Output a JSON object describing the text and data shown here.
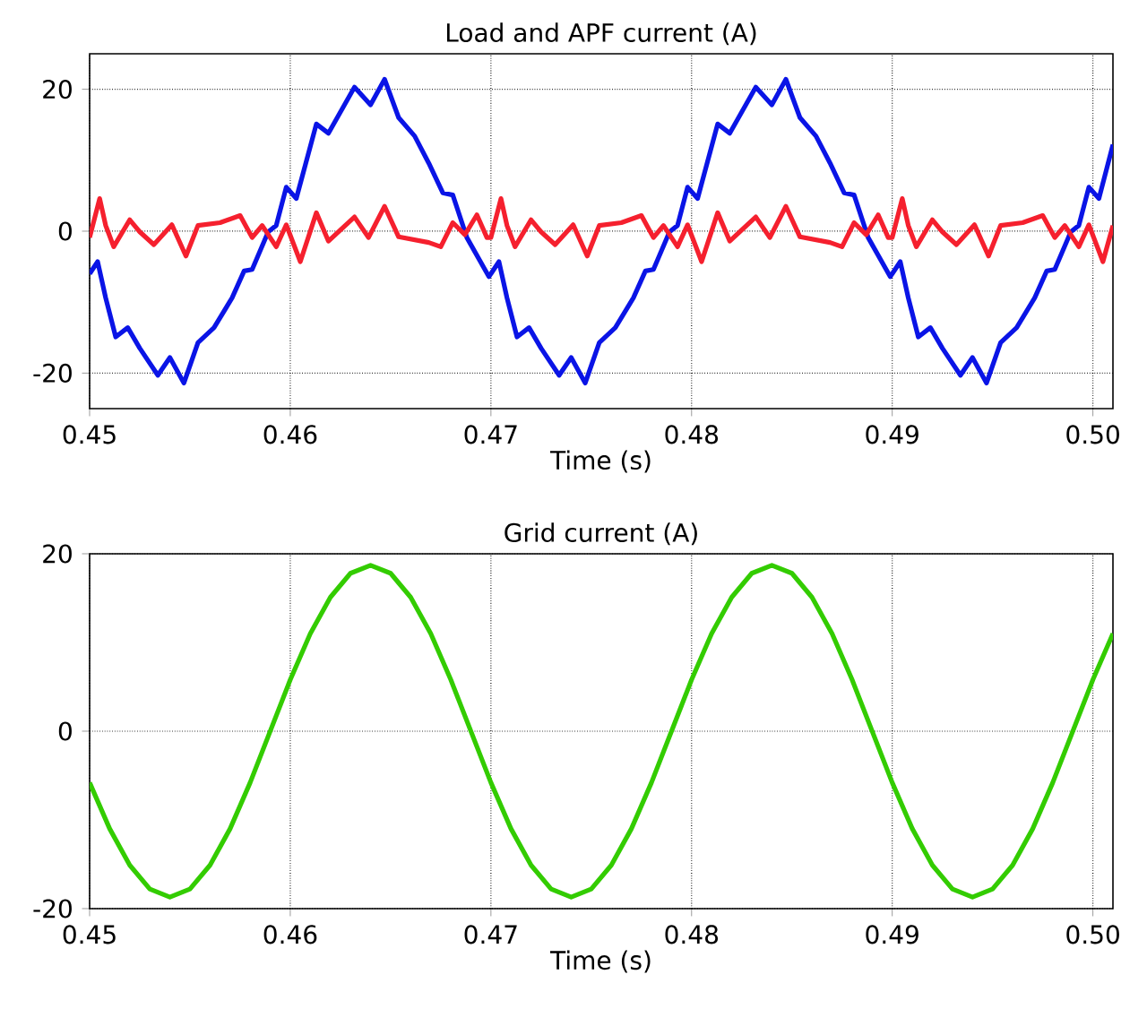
{
  "chart_data": [
    {
      "type": "line",
      "title": "Load and APF current (A)",
      "xlabel": "Time (s)",
      "xlim": [
        0.45,
        0.501
      ],
      "xticks": [
        0.45,
        0.46,
        0.47,
        0.48,
        0.49,
        {
          "value": 0.5,
          "label": "0.50"
        }
      ],
      "ylim": [
        -25,
        25
      ],
      "yticks": [
        -20,
        0,
        20
      ],
      "grid": true,
      "series": [
        {
          "color": "#0a14e6",
          "x": [
            0.45,
            0.4504,
            0.4508,
            0.4513,
            0.4519,
            0.4525,
            0.4534,
            0.454,
            0.4547,
            0.4554,
            0.4562,
            0.4571,
            0.4577,
            0.4581,
            0.4589,
            0.4593,
            0.4598,
            0.4603,
            0.4613,
            0.4619,
            0.4632,
            0.464,
            0.4647,
            0.4654,
            0.4662,
            0.4669,
            0.4676,
            0.4681,
            0.4688,
            0.4699,
            0.47,
            0.4704,
            0.4708,
            0.4713,
            0.4719,
            0.4725,
            0.4734,
            0.474,
            0.4747,
            0.4754,
            0.4762,
            0.4771,
            0.4777,
            0.4781,
            0.4789,
            0.4793,
            0.4798,
            0.4803,
            0.4813,
            0.4819,
            0.4832,
            0.484,
            0.4847,
            0.4854,
            0.4862,
            0.4869,
            0.4876,
            0.4881,
            0.4888,
            0.4899,
            0.49,
            0.4904,
            0.4908,
            0.4913,
            0.4919,
            0.4925,
            0.4934,
            0.494,
            0.4947,
            0.4954,
            0.4962,
            0.4971,
            0.4977,
            0.4981,
            0.4989,
            0.4993,
            0.4998,
            0.5003,
            0.501
          ],
          "values": [
            -6.0,
            -4.3,
            -9.4,
            -14.9,
            -13.6,
            -16.5,
            -20.3,
            -17.8,
            -21.4,
            -15.7,
            -13.6,
            -9.4,
            -5.6,
            -5.4,
            -0.1,
            0.8,
            6.2,
            4.6,
            15.1,
            13.8,
            20.3,
            17.8,
            21.4,
            16.0,
            13.4,
            9.6,
            5.4,
            5.1,
            -0.9,
            -6.4,
            -6.0,
            -4.3,
            -9.4,
            -14.9,
            -13.6,
            -16.5,
            -20.3,
            -17.8,
            -21.4,
            -15.7,
            -13.6,
            -9.4,
            -5.6,
            -5.4,
            -0.1,
            0.8,
            6.2,
            4.6,
            15.1,
            13.8,
            20.3,
            17.8,
            21.4,
            16.0,
            13.4,
            9.6,
            5.4,
            5.1,
            -0.9,
            -6.4,
            -6.0,
            -4.3,
            -9.4,
            -14.9,
            -13.6,
            -16.5,
            -20.3,
            -17.8,
            -21.4,
            -15.7,
            -13.6,
            -9.4,
            -5.6,
            -5.4,
            -0.1,
            0.8,
            6.2,
            4.6,
            12.2
          ]
        },
        {
          "color": "#f5202e",
          "x": [
            0.45,
            0.4505,
            0.4508,
            0.4512,
            0.452,
            0.4525,
            0.4532,
            0.4541,
            0.4548,
            0.4554,
            0.4565,
            0.4575,
            0.4581,
            0.4586,
            0.4593,
            0.4598,
            0.4605,
            0.4613,
            0.4619,
            0.4632,
            0.4639,
            0.4647,
            0.4654,
            0.4669,
            0.4675,
            0.4681,
            0.4687,
            0.4693,
            0.4698,
            0.47,
            0.4705,
            0.4708,
            0.4712,
            0.472,
            0.4725,
            0.4732,
            0.4741,
            0.4748,
            0.4754,
            0.4765,
            0.4775,
            0.4781,
            0.4786,
            0.4793,
            0.4798,
            0.4805,
            0.4813,
            0.4819,
            0.4832,
            0.4839,
            0.4847,
            0.4854,
            0.4869,
            0.4875,
            0.4881,
            0.4887,
            0.4893,
            0.4898,
            0.49,
            0.4905,
            0.4908,
            0.4912,
            0.492,
            0.4925,
            0.4932,
            0.4941,
            0.4948,
            0.4954,
            0.4965,
            0.4975,
            0.4981,
            0.4986,
            0.4993,
            0.4998,
            0.5005,
            0.501
          ],
          "values": [
            -0.9,
            4.6,
            0.8,
            -2.2,
            1.6,
            -0.1,
            -1.9,
            0.9,
            -3.5,
            0.8,
            1.2,
            2.2,
            -0.9,
            0.8,
            -2.2,
            0.9,
            -4.3,
            2.6,
            -1.4,
            2.0,
            -0.9,
            3.5,
            -0.8,
            -1.6,
            -2.2,
            1.2,
            -0.5,
            2.3,
            -0.9,
            -0.9,
            4.6,
            0.8,
            -2.2,
            1.6,
            -0.1,
            -1.9,
            0.9,
            -3.5,
            0.8,
            1.2,
            2.2,
            -0.9,
            0.8,
            -2.2,
            0.9,
            -4.3,
            2.6,
            -1.4,
            2.0,
            -0.9,
            3.5,
            -0.8,
            -1.6,
            -2.2,
            1.2,
            -0.5,
            2.3,
            -0.9,
            -0.9,
            4.6,
            0.8,
            -2.2,
            1.6,
            -0.1,
            -1.9,
            0.9,
            -3.5,
            0.8,
            1.2,
            2.2,
            -0.9,
            0.8,
            -2.2,
            0.9,
            -4.3,
            0.8
          ]
        }
      ]
    },
    {
      "type": "line",
      "title": "Grid current (A)",
      "xlabel": "Time (s)",
      "xlim": [
        0.45,
        0.501
      ],
      "xticks": [
        0.45,
        0.46,
        0.47,
        0.48,
        0.49,
        {
          "value": 0.5,
          "label": "0.50"
        }
      ],
      "ylim": [
        -20,
        20
      ],
      "yticks": [
        -20,
        0,
        20
      ],
      "grid": true,
      "series": [
        {
          "color": "#33cc00",
          "x": [
            0.45,
            0.451,
            0.452,
            0.453,
            0.454,
            0.455,
            0.456,
            0.457,
            0.458,
            0.459,
            0.46,
            0.461,
            0.462,
            0.463,
            0.464,
            0.465,
            0.466,
            0.467,
            0.468,
            0.469,
            0.47,
            0.471,
            0.472,
            0.473,
            0.474,
            0.475,
            0.476,
            0.477,
            0.478,
            0.479,
            0.48,
            0.481,
            0.482,
            0.483,
            0.484,
            0.485,
            0.486,
            0.487,
            0.488,
            0.489,
            0.49,
            0.491,
            0.492,
            0.493,
            0.494,
            0.495,
            0.496,
            0.497,
            0.498,
            0.499,
            0.5,
            0.501
          ],
          "values": [
            -5.8,
            -11.0,
            -15.1,
            -17.8,
            -18.7,
            -17.8,
            -15.1,
            -11.0,
            -5.8,
            0,
            5.8,
            11.0,
            15.1,
            17.8,
            18.7,
            17.8,
            15.1,
            11.0,
            5.8,
            0,
            -5.8,
            -11.0,
            -15.1,
            -17.8,
            -18.7,
            -17.8,
            -15.1,
            -11.0,
            -5.8,
            0,
            5.8,
            11.0,
            15.1,
            17.8,
            18.7,
            17.8,
            15.1,
            11.0,
            5.8,
            0,
            -5.8,
            -11.0,
            -15.1,
            -17.8,
            -18.7,
            -17.8,
            -15.1,
            -11.0,
            -5.8,
            0,
            5.8,
            11.0
          ]
        }
      ]
    }
  ]
}
